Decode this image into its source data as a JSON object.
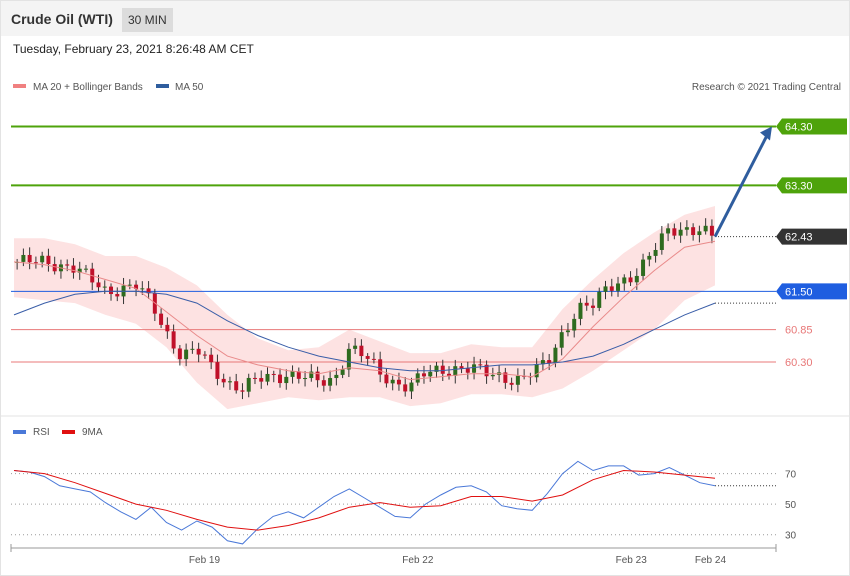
{
  "header": {
    "instrument": "Crude Oil (WTI)",
    "interval": "30 MIN"
  },
  "timestamp": "Tuesday, February 23, 2021 8:26:48 AM CET",
  "credit": "Research © 2021 Trading Central",
  "colors": {
    "bullish": "#2e6b1f",
    "bearish": "#c0112a",
    "resistance": "#4ea30b",
    "support_blue": "#1f5ee0",
    "support_red": "#e87878",
    "ma20": "#e98a8a",
    "ma50": "#3a5ea8",
    "band_fill": "#fde2e2",
    "last_price_bg": "#333333",
    "rsi": "#4a78d8",
    "rsi_ma": "#e01010",
    "arrow": "#2f5d9e"
  },
  "chart_data": [
    {
      "type": "candlestick",
      "title": "Crude Oil (WTI)",
      "legend": [
        {
          "label": "MA 20 + Bollinger Bands",
          "color": "#f08080"
        },
        {
          "label": "MA 50",
          "color": "#2f5d9e"
        }
      ],
      "legend_position": "top-left",
      "ylim": [
        59.45,
        64.75
      ],
      "xlim": [
        0,
        100
      ],
      "levels": [
        {
          "value": 64.3,
          "label": "64.30",
          "kind": "resistance"
        },
        {
          "value": 63.3,
          "label": "63.30",
          "kind": "resistance"
        },
        {
          "value": 61.5,
          "label": "61.50",
          "kind": "pivot"
        },
        {
          "value": 60.85,
          "label": "60.85",
          "kind": "support"
        },
        {
          "value": 60.3,
          "label": "60.30",
          "kind": "support"
        }
      ],
      "last_price": {
        "value": 62.43,
        "label": "62.43"
      },
      "forecast_arrow": {
        "from": [
          92,
          62.43
        ],
        "to": [
          100,
          64.3
        ]
      },
      "x_ticks": [
        {
          "x": 25,
          "label": "Feb 19"
        },
        {
          "x": 53,
          "label": "Feb 22"
        },
        {
          "x": 81,
          "label": "Feb 23"
        },
        {
          "x": 91.4,
          "label": "Feb 24"
        }
      ],
      "close_path": [
        [
          0,
          62.0
        ],
        [
          4,
          62.0
        ],
        [
          8,
          61.9
        ],
        [
          12,
          61.5
        ],
        [
          16,
          61.6
        ],
        [
          18,
          61.3
        ],
        [
          20,
          60.8
        ],
        [
          22,
          60.4
        ],
        [
          24,
          60.5
        ],
        [
          26,
          60.2
        ],
        [
          28,
          59.95
        ],
        [
          30,
          59.85
        ],
        [
          32,
          60.0
        ],
        [
          34,
          60.05
        ],
        [
          36,
          60.1
        ],
        [
          38,
          60.05
        ],
        [
          40,
          59.95
        ],
        [
          42,
          60.0
        ],
        [
          44,
          60.55
        ],
        [
          46,
          60.4
        ],
        [
          48,
          60.1
        ],
        [
          50,
          59.95
        ],
        [
          52,
          59.9
        ],
        [
          54,
          60.1
        ],
        [
          56,
          60.15
        ],
        [
          58,
          60.2
        ],
        [
          60,
          60.2
        ],
        [
          62,
          60.1
        ],
        [
          64,
          60.05
        ],
        [
          66,
          60.0
        ],
        [
          68,
          60.1
        ],
        [
          70,
          60.3
        ],
        [
          72,
          60.8
        ],
        [
          74,
          61.2
        ],
        [
          76,
          61.25
        ],
        [
          78,
          61.6
        ],
        [
          80,
          61.7
        ],
        [
          82,
          61.8
        ],
        [
          84,
          62.2
        ],
        [
          86,
          62.6
        ],
        [
          88,
          62.55
        ],
        [
          90,
          62.5
        ],
        [
          92,
          62.43
        ]
      ],
      "ma20": [
        [
          0,
          62.0
        ],
        [
          4,
          61.95
        ],
        [
          8,
          61.85
        ],
        [
          12,
          61.7
        ],
        [
          16,
          61.55
        ],
        [
          20,
          61.15
        ],
        [
          24,
          60.75
        ],
        [
          28,
          60.4
        ],
        [
          32,
          60.25
        ],
        [
          36,
          60.15
        ],
        [
          40,
          60.1
        ],
        [
          44,
          60.2
        ],
        [
          48,
          60.15
        ],
        [
          52,
          60.0
        ],
        [
          56,
          60.05
        ],
        [
          60,
          60.1
        ],
        [
          64,
          60.1
        ],
        [
          68,
          60.05
        ],
        [
          72,
          60.35
        ],
        [
          76,
          60.9
        ],
        [
          80,
          61.4
        ],
        [
          84,
          61.85
        ],
        [
          88,
          62.25
        ],
        [
          92,
          62.35
        ]
      ],
      "bollinger_upper": [
        [
          0,
          62.4
        ],
        [
          4,
          62.4
        ],
        [
          8,
          62.3
        ],
        [
          12,
          62.1
        ],
        [
          16,
          62.1
        ],
        [
          20,
          61.9
        ],
        [
          24,
          61.6
        ],
        [
          28,
          61.1
        ],
        [
          32,
          60.7
        ],
        [
          36,
          60.5
        ],
        [
          40,
          60.55
        ],
        [
          44,
          60.85
        ],
        [
          48,
          60.65
        ],
        [
          52,
          60.45
        ],
        [
          56,
          60.45
        ],
        [
          60,
          60.6
        ],
        [
          64,
          60.55
        ],
        [
          68,
          60.55
        ],
        [
          72,
          61.2
        ],
        [
          76,
          61.7
        ],
        [
          80,
          62.15
        ],
        [
          84,
          62.5
        ],
        [
          88,
          62.8
        ],
        [
          92,
          62.95
        ]
      ],
      "bollinger_lower": [
        [
          0,
          61.4
        ],
        [
          4,
          61.35
        ],
        [
          8,
          61.3
        ],
        [
          12,
          61.1
        ],
        [
          16,
          60.95
        ],
        [
          20,
          60.55
        ],
        [
          24,
          59.95
        ],
        [
          28,
          59.5
        ],
        [
          32,
          59.6
        ],
        [
          36,
          59.7
        ],
        [
          40,
          59.65
        ],
        [
          44,
          59.7
        ],
        [
          48,
          59.7
        ],
        [
          52,
          59.55
        ],
        [
          56,
          59.6
        ],
        [
          60,
          59.75
        ],
        [
          64,
          59.75
        ],
        [
          68,
          59.7
        ],
        [
          72,
          59.85
        ],
        [
          76,
          60.15
        ],
        [
          80,
          60.5
        ],
        [
          84,
          60.85
        ],
        [
          88,
          61.35
        ],
        [
          92,
          61.6
        ]
      ],
      "ma50": [
        [
          0,
          61.1
        ],
        [
          4,
          61.3
        ],
        [
          8,
          61.45
        ],
        [
          12,
          61.5
        ],
        [
          16,
          61.5
        ],
        [
          20,
          61.45
        ],
        [
          24,
          61.3
        ],
        [
          28,
          61.0
        ],
        [
          32,
          60.75
        ],
        [
          36,
          60.55
        ],
        [
          40,
          60.4
        ],
        [
          44,
          60.3
        ],
        [
          48,
          60.2
        ],
        [
          52,
          60.15
        ],
        [
          56,
          60.15
        ],
        [
          60,
          60.2
        ],
        [
          64,
          60.25
        ],
        [
          68,
          60.25
        ],
        [
          72,
          60.3
        ],
        [
          76,
          60.4
        ],
        [
          80,
          60.6
        ],
        [
          84,
          60.85
        ],
        [
          88,
          61.1
        ],
        [
          92,
          61.3
        ]
      ]
    },
    {
      "type": "line",
      "legend": [
        {
          "label": "RSI",
          "color": "#4a78d8"
        },
        {
          "label": "9MA",
          "color": "#e01010"
        }
      ],
      "legend_position": "top-left",
      "ylim": [
        20,
        90
      ],
      "gridlines": [
        {
          "value": 70,
          "label": "70"
        },
        {
          "value": 50,
          "label": "50"
        },
        {
          "value": 30,
          "label": "30"
        }
      ],
      "series": [
        {
          "name": "RSI",
          "values": [
            [
              0,
              72
            ],
            [
              2,
              71
            ],
            [
              4,
              68
            ],
            [
              6,
              62
            ],
            [
              8,
              60
            ],
            [
              10,
              58
            ],
            [
              12,
              51
            ],
            [
              14,
              45
            ],
            [
              16,
              40
            ],
            [
              18,
              48
            ],
            [
              20,
              38
            ],
            [
              22,
              33
            ],
            [
              24,
              39
            ],
            [
              26,
              35
            ],
            [
              28,
              26
            ],
            [
              30,
              24
            ],
            [
              32,
              34
            ],
            [
              34,
              42
            ],
            [
              36,
              45
            ],
            [
              38,
              41
            ],
            [
              40,
              48
            ],
            [
              42,
              55
            ],
            [
              44,
              60
            ],
            [
              46,
              54
            ],
            [
              48,
              48
            ],
            [
              50,
              42
            ],
            [
              52,
              41
            ],
            [
              54,
              50
            ],
            [
              56,
              56
            ],
            [
              58,
              61
            ],
            [
              60,
              62
            ],
            [
              62,
              58
            ],
            [
              64,
              49
            ],
            [
              66,
              47
            ],
            [
              68,
              46
            ],
            [
              70,
              57
            ],
            [
              72,
              70
            ],
            [
              74,
              78
            ],
            [
              76,
              72
            ],
            [
              78,
              75
            ],
            [
              80,
              75
            ],
            [
              82,
              69
            ],
            [
              84,
              70
            ],
            [
              86,
              74
            ],
            [
              88,
              69
            ],
            [
              90,
              64
            ],
            [
              92,
              62
            ]
          ]
        },
        {
          "name": "9MA",
          "values": [
            [
              0,
              72
            ],
            [
              4,
              70
            ],
            [
              8,
              64
            ],
            [
              12,
              57
            ],
            [
              16,
              50
            ],
            [
              20,
              46
            ],
            [
              24,
              40
            ],
            [
              28,
              35
            ],
            [
              32,
              33
            ],
            [
              36,
              36
            ],
            [
              40,
              41
            ],
            [
              44,
              48
            ],
            [
              48,
              51
            ],
            [
              52,
              48
            ],
            [
              56,
              49
            ],
            [
              60,
              55
            ],
            [
              64,
              55
            ],
            [
              68,
              52
            ],
            [
              72,
              56
            ],
            [
              76,
              66
            ],
            [
              80,
              72
            ],
            [
              84,
              71
            ],
            [
              88,
              69
            ],
            [
              92,
              67
            ]
          ]
        }
      ]
    }
  ],
  "top_panel": {
    "legend_ma20": "MA 20 + Bollinger Bands",
    "legend_ma50": "MA 50",
    "levels": [
      "64.30",
      "63.30",
      "62.43",
      "61.50",
      "60.85",
      "60.30"
    ]
  },
  "bottom_panel": {
    "legend_rsi": "RSI",
    "legend_9ma": "9MA",
    "gridlabels": [
      "70",
      "50",
      "30"
    ],
    "x_labels": [
      "Feb 19",
      "Feb 22",
      "Feb 23",
      "Feb 24"
    ]
  }
}
